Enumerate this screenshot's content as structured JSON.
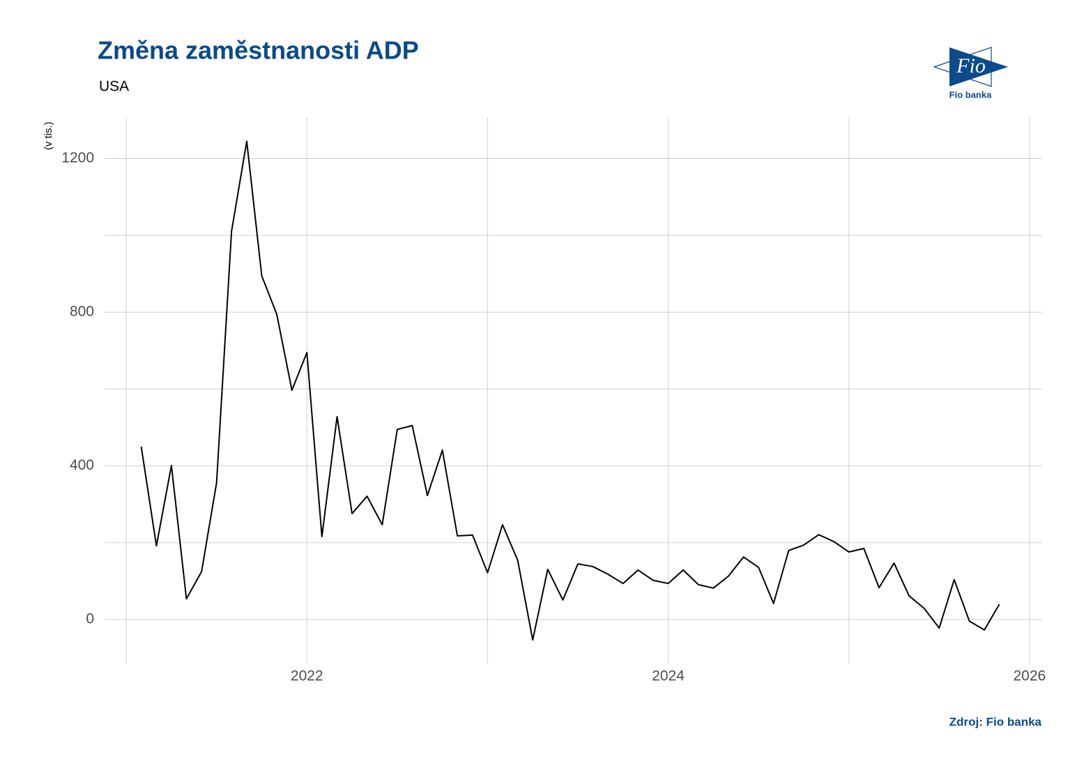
{
  "chart_data": {
    "type": "line",
    "title": "Změna zaměstnanosti ADP",
    "subtitle": "USA",
    "y_label": "(v tis.)",
    "source": "Zdroj: Fio banka",
    "x": [
      2021.083,
      2021.167,
      2021.25,
      2021.333,
      2021.417,
      2021.5,
      2021.583,
      2021.667,
      2021.75,
      2021.833,
      2021.917,
      2022.0,
      2022.083,
      2022.167,
      2022.25,
      2022.333,
      2022.417,
      2022.5,
      2022.583,
      2022.667,
      2022.75,
      2022.833,
      2022.917,
      2023.0,
      2023.083,
      2023.167,
      2023.25,
      2023.333,
      2023.417,
      2023.5,
      2023.583,
      2023.667,
      2023.75,
      2023.833,
      2023.917,
      2024.0,
      2024.083,
      2024.167,
      2024.25,
      2024.333,
      2024.417,
      2024.5,
      2024.583,
      2024.667,
      2024.75,
      2024.833,
      2024.917,
      2025.0,
      2025.083,
      2025.167,
      2025.25,
      2025.333,
      2025.417,
      2025.5,
      2025.583,
      2025.667,
      2025.75,
      2025.833
    ],
    "series": [
      {
        "name": "ADP",
        "color": "#000000",
        "values": [
          450,
          192,
          401,
          54,
          125,
          356,
          1011,
          1245,
          895,
          795,
          597,
          695,
          216,
          528,
          276,
          321,
          247,
          495,
          505,
          323,
          441,
          218,
          220,
          122,
          247,
          154,
          -53,
          131,
          51,
          145,
          138,
          118,
          94,
          129,
          102,
          94,
          129,
          91,
          82,
          113,
          163,
          136,
          42,
          180,
          194,
          221,
          203,
          176,
          185,
          83,
          147,
          62,
          29,
          -22,
          104,
          -4,
          -27,
          40
        ]
      }
    ],
    "xlim": [
      2020.88,
      2026.07
    ],
    "xticks": [
      2022,
      2024,
      2026
    ],
    "xminor": [
      2021,
      2023,
      2025
    ],
    "ylim": [
      -114,
      1308
    ],
    "yticks": [
      0,
      400,
      800,
      1200
    ],
    "yminor": [
      200,
      600,
      1000
    ],
    "grid": true
  },
  "logo": {
    "mark": "Fio",
    "name": "Fio banka"
  }
}
